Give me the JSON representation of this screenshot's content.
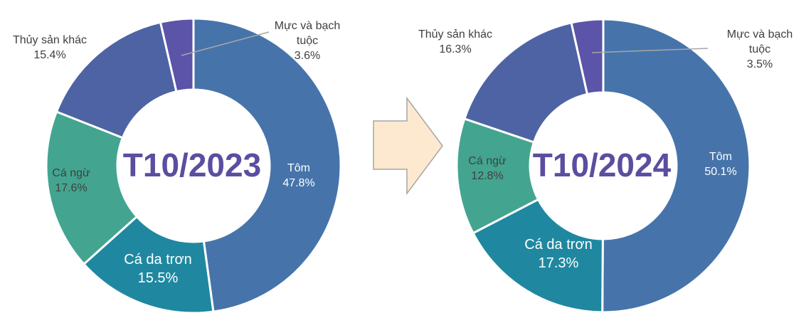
{
  "chart_data": [
    {
      "type": "donut",
      "title": "T10/2023",
      "categories": [
        "Tôm",
        "Cá da trơn",
        "Cá ngừ",
        "Thủy sản khác",
        "Mực và bạch tuộc"
      ],
      "values": [
        47.8,
        15.5,
        17.6,
        15.4,
        3.6
      ],
      "value_labels": [
        "47.8%",
        "15.5%",
        "17.6%",
        "15.4%",
        "3.6%"
      ],
      "colors": [
        "#4674aa",
        "#1f88a0",
        "#43a58f",
        "#4e63a3",
        "#5c54a8"
      ]
    },
    {
      "type": "donut",
      "title": "T10/2024",
      "categories": [
        "Tôm",
        "Cá da trơn",
        "Cá ngừ",
        "Thủy sản khác",
        "Mực và bạch tuộc"
      ],
      "values": [
        50.1,
        17.3,
        12.8,
        16.3,
        3.5
      ],
      "value_labels": [
        "50.1%",
        "17.3%",
        "12.8%",
        "16.3%",
        "3.5%"
      ],
      "colors": [
        "#4674aa",
        "#1f88a0",
        "#43a58f",
        "#4e63a3",
        "#5c54a8"
      ]
    }
  ]
}
